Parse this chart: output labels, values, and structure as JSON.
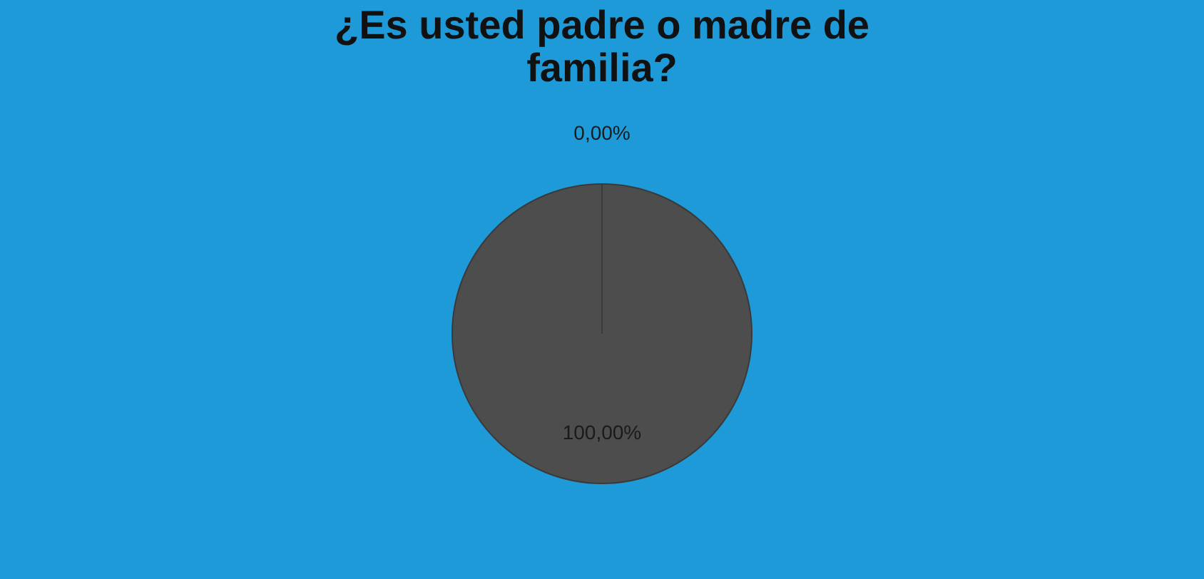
{
  "chart_data": {
    "type": "pie",
    "title": "¿Es usted padre o madre de familia?",
    "categories": [
      null,
      null
    ],
    "values": [
      100,
      0
    ],
    "colors": [
      "#4d4d4d",
      "#2f6fb5"
    ],
    "value_labels": [
      "100,00%",
      "0,00%"
    ],
    "legend": false
  }
}
